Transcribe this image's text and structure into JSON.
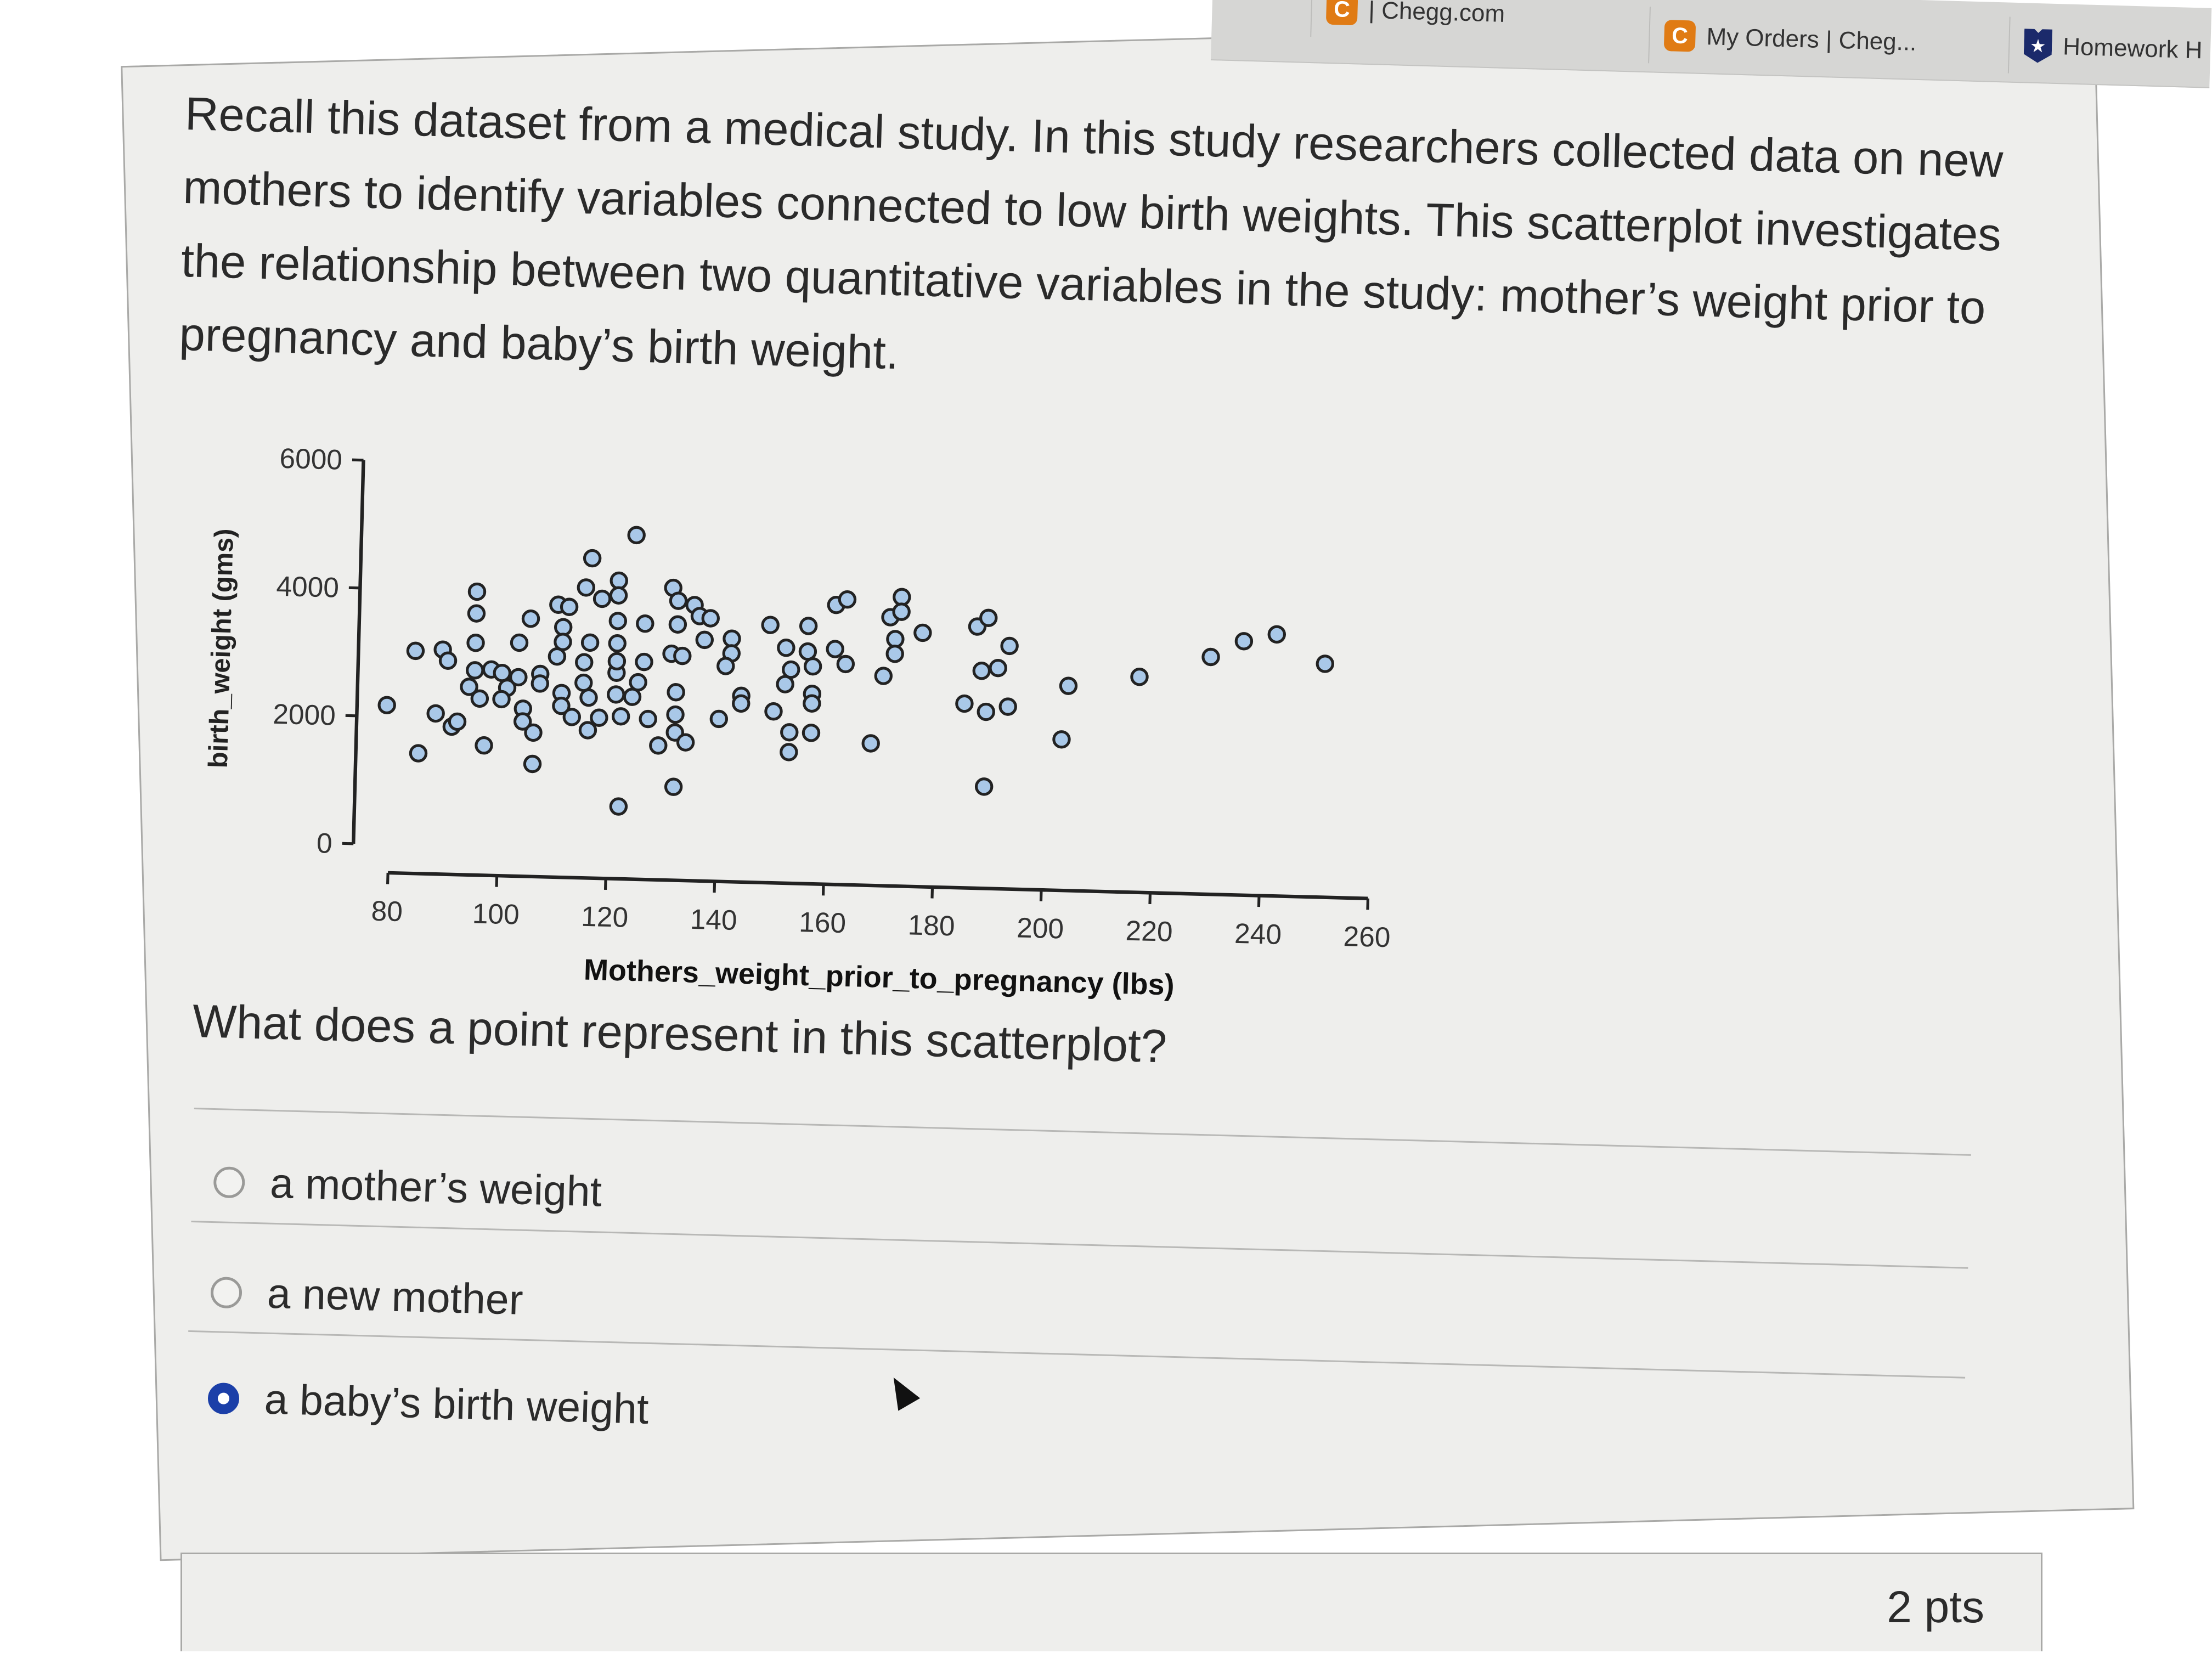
{
  "browser_tabs": [
    {
      "label": "| Chegg.com",
      "icon": "chegg-icon"
    },
    {
      "label": "My Orders | Cheg...",
      "icon": "chegg-icon"
    },
    {
      "label": "Homework H",
      "icon": "shield-star-icon"
    }
  ],
  "question": {
    "text": "Recall this dataset from a medical study. In this study researchers collected data on new mothers to identify variables connected to low birth weights. This scatterplot investigates the relationship between two quantitative variables in the study: mother’s weight prior to pregnancy and baby’s birth weight.",
    "prompt": "What does a point represent in this scatterplot?",
    "options": [
      {
        "label": "a mother’s weight",
        "selected": false
      },
      {
        "label": "a new mother",
        "selected": false
      },
      {
        "label": "a baby’s birth weight",
        "selected": true
      }
    ],
    "accent_color": "#1b3fa8"
  },
  "next_question": {
    "points": "2 pts"
  },
  "chart_data": {
    "type": "scatter",
    "xlabel": "Mothers_weight_prior_to_pregnancy (lbs)",
    "ylabel": "birth_weight (gms)",
    "xlim": [
      80,
      260
    ],
    "ylim": [
      0,
      6000
    ],
    "xticks": [
      "80",
      "100",
      "120",
      "140",
      "160",
      "180",
      "200",
      "220",
      "240",
      "260"
    ],
    "yticks": [
      "0",
      "2000",
      "4000",
      "6000"
    ],
    "grid": false,
    "marker_color": "#a9c8e8",
    "points": [
      [
        79,
        2180
      ],
      [
        84,
        3040
      ],
      [
        85,
        1440
      ],
      [
        89,
        3070
      ],
      [
        90,
        2900
      ],
      [
        88,
        2070
      ],
      [
        91,
        1870
      ],
      [
        92,
        1950
      ],
      [
        95,
        3990
      ],
      [
        95,
        3650
      ],
      [
        95,
        3190
      ],
      [
        95,
        2760
      ],
      [
        94,
        2500
      ],
      [
        96,
        2320
      ],
      [
        97,
        1590
      ],
      [
        98,
        2780
      ],
      [
        100,
        2730
      ],
      [
        101,
        2500
      ],
      [
        100,
        2320
      ],
      [
        103,
        3210
      ],
      [
        103,
        2670
      ],
      [
        104,
        2180
      ],
      [
        104,
        1980
      ],
      [
        106,
        1810
      ],
      [
        106,
        1320
      ],
      [
        105,
        3590
      ],
      [
        107,
        2730
      ],
      [
        107,
        2580
      ],
      [
        110,
        3010
      ],
      [
        110,
        3820
      ],
      [
        112,
        3790
      ],
      [
        111,
        3470
      ],
      [
        111,
        3240
      ],
      [
        111,
        2440
      ],
      [
        111,
        2240
      ],
      [
        113,
        2070
      ],
      [
        116,
        4560
      ],
      [
        115,
        4100
      ],
      [
        116,
        3240
      ],
      [
        115,
        2930
      ],
      [
        115,
        2610
      ],
      [
        116,
        2380
      ],
      [
        116,
        1870
      ],
      [
        118,
        3930
      ],
      [
        118,
        2070
      ],
      [
        121,
        4220
      ],
      [
        121,
        3990
      ],
      [
        121,
        3590
      ],
      [
        121,
        3240
      ],
      [
        121,
        2780
      ],
      [
        121,
        2960
      ],
      [
        121,
        2440
      ],
      [
        122,
        2100
      ],
      [
        124,
        4940
      ],
      [
        122,
        690
      ],
      [
        126,
        3560
      ],
      [
        126,
        2960
      ],
      [
        125,
        2640
      ],
      [
        124,
        2410
      ],
      [
        127,
        2070
      ],
      [
        131,
        4130
      ],
      [
        132,
        3930
      ],
      [
        132,
        3560
      ],
      [
        131,
        3100
      ],
      [
        133,
        3070
      ],
      [
        135,
        3870
      ],
      [
        136,
        3700
      ],
      [
        137,
        3330
      ],
      [
        138,
        3670
      ],
      [
        132,
        2500
      ],
      [
        132,
        2150
      ],
      [
        132,
        1870
      ],
      [
        129,
        1660
      ],
      [
        134,
        1720
      ],
      [
        132,
        1020
      ],
      [
        140,
        2100
      ],
      [
        142,
        3360
      ],
      [
        142,
        3130
      ],
      [
        141,
        2930
      ],
      [
        144,
        2470
      ],
      [
        144,
        2350
      ],
      [
        149,
        3590
      ],
      [
        150,
        2240
      ],
      [
        152,
        3240
      ],
      [
        153,
        2900
      ],
      [
        152,
        2670
      ],
      [
        153,
        1920
      ],
      [
        153,
        1610
      ],
      [
        156,
        3590
      ],
      [
        156,
        3190
      ],
      [
        157,
        2960
      ],
      [
        157,
        2530
      ],
      [
        157,
        2380
      ],
      [
        157,
        1920
      ],
      [
        161,
        3930
      ],
      [
        161,
        3240
      ],
      [
        163,
        4020
      ],
      [
        163,
        3010
      ],
      [
        168,
        1780
      ],
      [
        170,
        2840
      ],
      [
        171,
        3760
      ],
      [
        172,
        3420
      ],
      [
        173,
        4080
      ],
      [
        173,
        3850
      ],
      [
        172,
        3190
      ],
      [
        177,
        3530
      ],
      [
        185,
        2440
      ],
      [
        187,
        3650
      ],
      [
        189,
        3790
      ],
      [
        188,
        2960
      ],
      [
        189,
        2320
      ],
      [
        189,
        1150
      ],
      [
        191,
        3010
      ],
      [
        193,
        3360
      ],
      [
        193,
        2410
      ],
      [
        203,
        1920
      ],
      [
        204,
        2760
      ],
      [
        217,
        2930
      ],
      [
        230,
        3270
      ],
      [
        236,
        3530
      ],
      [
        242,
        3650
      ],
      [
        251,
        3210
      ]
    ]
  }
}
